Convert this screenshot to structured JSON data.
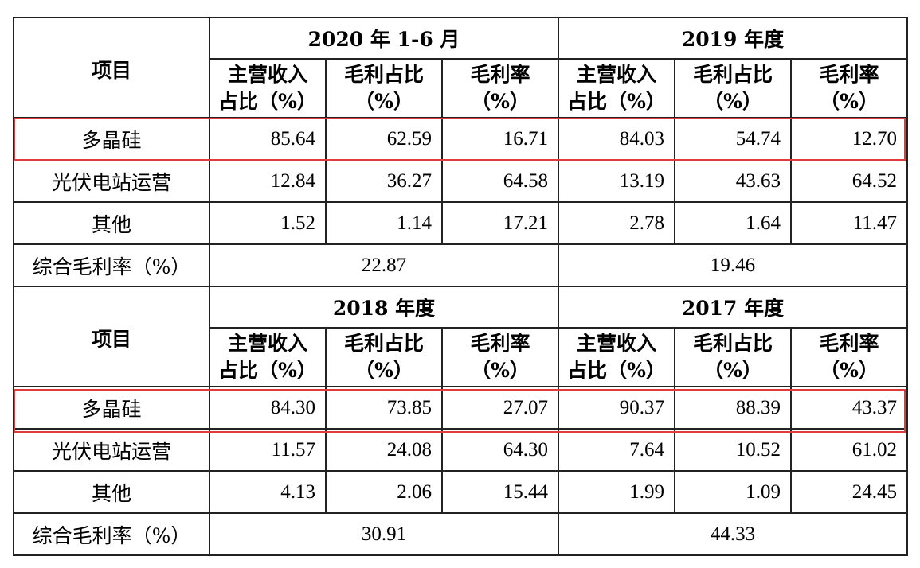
{
  "blocks": [
    {
      "item_label": "项目",
      "periods": [
        {
          "name": "2020 年 1-6 月"
        },
        {
          "name": "2019 年度"
        }
      ],
      "columns": [
        "主营收入\n占比（%）",
        "毛利占比\n（%）",
        "毛利率\n（%）",
        "主营收入\n占比（%）",
        "毛利占比\n（%）",
        "毛利率\n（%）"
      ],
      "rows": [
        {
          "label": "多晶硅",
          "values": [
            "85.64",
            "62.59",
            "16.71",
            "84.03",
            "54.74",
            "12.70"
          ],
          "highlighted": true
        },
        {
          "label": "光伏电站运营",
          "values": [
            "12.84",
            "36.27",
            "64.58",
            "13.19",
            "43.63",
            "64.52"
          ],
          "highlighted": false
        },
        {
          "label": "其他",
          "values": [
            "1.52",
            "1.14",
            "17.21",
            "2.78",
            "1.64",
            "11.47"
          ],
          "highlighted": false
        }
      ],
      "total": {
        "label": "综合毛利率（%）",
        "values": [
          "22.87",
          "19.46"
        ]
      }
    },
    {
      "item_label": "项目",
      "periods": [
        {
          "name": "2018 年度"
        },
        {
          "name": "2017 年度"
        }
      ],
      "columns": [
        "主营收入\n占比（%）",
        "毛利占比\n（%）",
        "毛利率\n（%）",
        "主营收入\n占比（%）",
        "毛利占比\n（%）",
        "毛利率\n（%）"
      ],
      "rows": [
        {
          "label": "多晶硅",
          "values": [
            "84.30",
            "73.85",
            "27.07",
            "90.37",
            "88.39",
            "43.37"
          ],
          "highlighted": true
        },
        {
          "label": "光伏电站运营",
          "values": [
            "11.57",
            "24.08",
            "64.30",
            "7.64",
            "10.52",
            "61.02"
          ],
          "highlighted": false
        },
        {
          "label": "其他",
          "values": [
            "4.13",
            "2.06",
            "15.44",
            "1.99",
            "1.09",
            "24.45"
          ],
          "highlighted": false
        }
      ],
      "total": {
        "label": "综合毛利率（%）",
        "values": [
          "30.91",
          "44.33"
        ]
      }
    }
  ],
  "colors": {
    "highlight_box": "#e03c3c",
    "grid": "#222222"
  }
}
